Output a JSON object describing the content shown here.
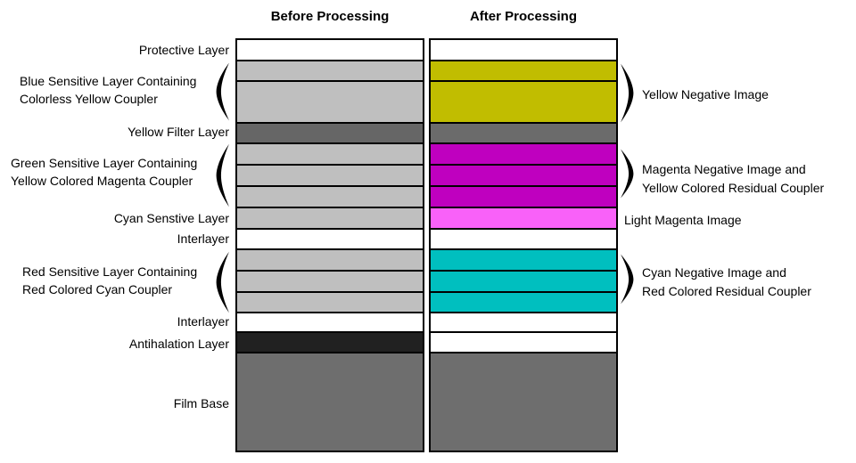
{
  "headers": {
    "before": "Before Processing",
    "after": "After Processing"
  },
  "left_labels": {
    "protective": "Protective Layer",
    "blue_line1": "Blue Sensitive Layer Containing",
    "blue_line2": "Colorless Yellow Coupler",
    "yellow_filter": "Yellow Filter Layer",
    "green_line1": "Green Sensitive Layer Containing",
    "green_line2": "Yellow Colored Magenta Coupler",
    "cyan_sensitive": "Cyan Senstive Layer",
    "interlayer_1": "Interlayer",
    "red_line1": "Red Sensitive Layer Containing",
    "red_line2": "Red Colored Cyan Coupler",
    "interlayer_2": "Interlayer",
    "antihalation": "Antihalation Layer",
    "film_base": "Film Base"
  },
  "right_annotations": {
    "yellow": "Yellow Negative Image",
    "magenta_line1": "Magenta Negative Image and",
    "magenta_line2": "Yellow Colored Residual Coupler",
    "light_magenta": "Light Magenta Image",
    "cyan_line1": "Cyan Negative Image and",
    "cyan_line2": "Red Colored Residual Coupler"
  },
  "palette": {
    "white": "#ffffff",
    "light_gray": "#bfbfbf",
    "dark_gray": "#666666",
    "mid_gray": "#6b6b6b",
    "yellow": "#c1bd00",
    "magenta": "#bf00bf",
    "light_magenta": "#f961f9",
    "cyan": "#00bfbf",
    "near_black": "#212121",
    "film_base_gray": "#6e6e6e",
    "outline": "#000000"
  },
  "layers": [
    {
      "name": "protective",
      "height": 22,
      "before": "white",
      "after": "white"
    },
    {
      "name": "blue-sensitive-a",
      "height": 21,
      "before": "light_gray",
      "after": "yellow"
    },
    {
      "name": "blue-sensitive-b",
      "height": 45,
      "before": "light_gray",
      "after": "yellow"
    },
    {
      "name": "yellow-filter",
      "height": 21,
      "before": "dark_gray",
      "after": "mid_gray"
    },
    {
      "name": "green-sensitive-a",
      "height": 22,
      "before": "light_gray",
      "after": "magenta"
    },
    {
      "name": "green-sensitive-b",
      "height": 22,
      "before": "light_gray",
      "after": "magenta"
    },
    {
      "name": "green-sensitive-c",
      "height": 22,
      "before": "light_gray",
      "after": "magenta"
    },
    {
      "name": "cyan-sensitive",
      "height": 22,
      "before": "light_gray",
      "after": "light_magenta"
    },
    {
      "name": "interlayer-1",
      "height": 21,
      "before": "white",
      "after": "white"
    },
    {
      "name": "red-sensitive-a",
      "height": 22,
      "before": "light_gray",
      "after": "cyan"
    },
    {
      "name": "red-sensitive-b",
      "height": 22,
      "before": "light_gray",
      "after": "cyan"
    },
    {
      "name": "red-sensitive-c",
      "height": 21,
      "before": "light_gray",
      "after": "cyan"
    },
    {
      "name": "interlayer-2",
      "height": 20,
      "before": "white",
      "after": "white"
    },
    {
      "name": "antihalation",
      "height": 21,
      "before": "near_black",
      "after": "white"
    },
    {
      "name": "film-base",
      "height": 109,
      "before": "film_base_gray",
      "after": "film_base_gray"
    }
  ]
}
